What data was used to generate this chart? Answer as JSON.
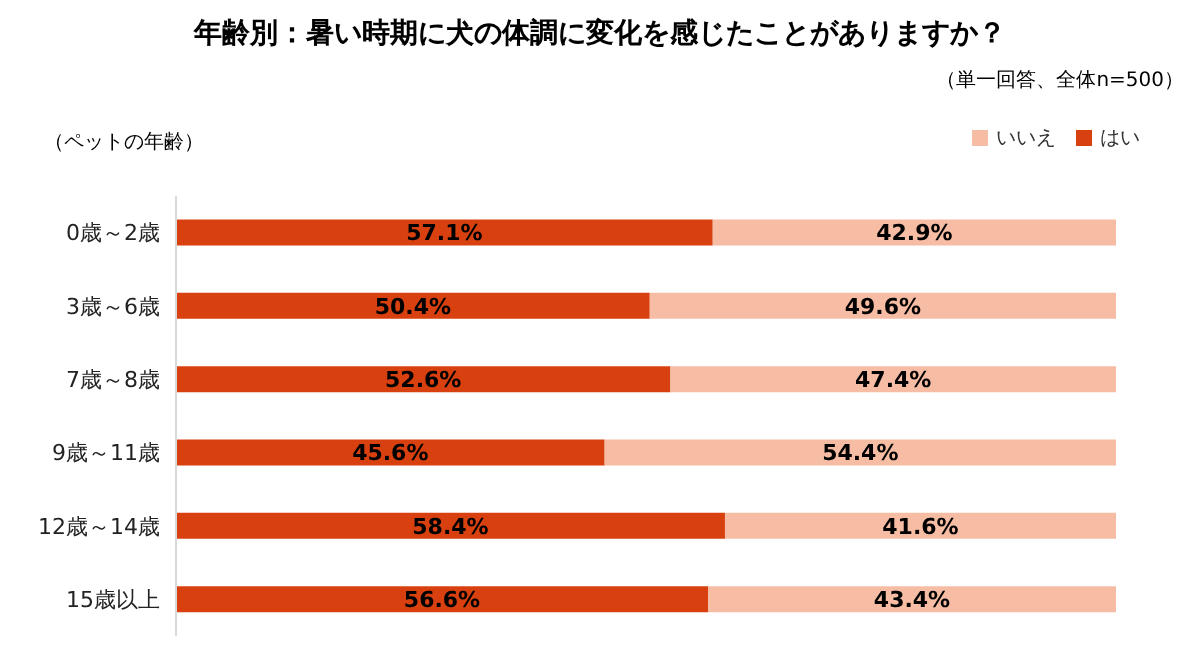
{
  "chart_data": {
    "type": "bar",
    "orientation": "horizontal",
    "stacked": true,
    "title": "年齢別：暑い時期に犬の体調に変化を感じたことがありますか？",
    "subtitle": "（単一回答、全体n=500）",
    "ylabel": "（ペットの年齢）",
    "categories": [
      "0歳～2歳",
      "3歳～6歳",
      "7歳～8歳",
      "9歳～11歳",
      "12歳～14歳",
      "15歳以上"
    ],
    "series": [
      {
        "name": "はい",
        "color": "#d9400f",
        "values": [
          57.1,
          50.4,
          52.6,
          45.6,
          58.4,
          56.6
        ],
        "value_labels": [
          "57.1%",
          "50.4%",
          "52.6%",
          "45.6%",
          "58.4%",
          "56.6%"
        ]
      },
      {
        "name": "いいえ",
        "color": "#f7bda4",
        "values": [
          42.9,
          49.6,
          47.4,
          54.4,
          41.6,
          43.4
        ],
        "value_labels": [
          "42.9%",
          "49.6%",
          "47.4%",
          "54.4%",
          "41.6%",
          "43.4%"
        ]
      }
    ],
    "xlim": [
      0,
      100
    ],
    "tick_labels": "y",
    "legend": "top right",
    "grid": false
  }
}
